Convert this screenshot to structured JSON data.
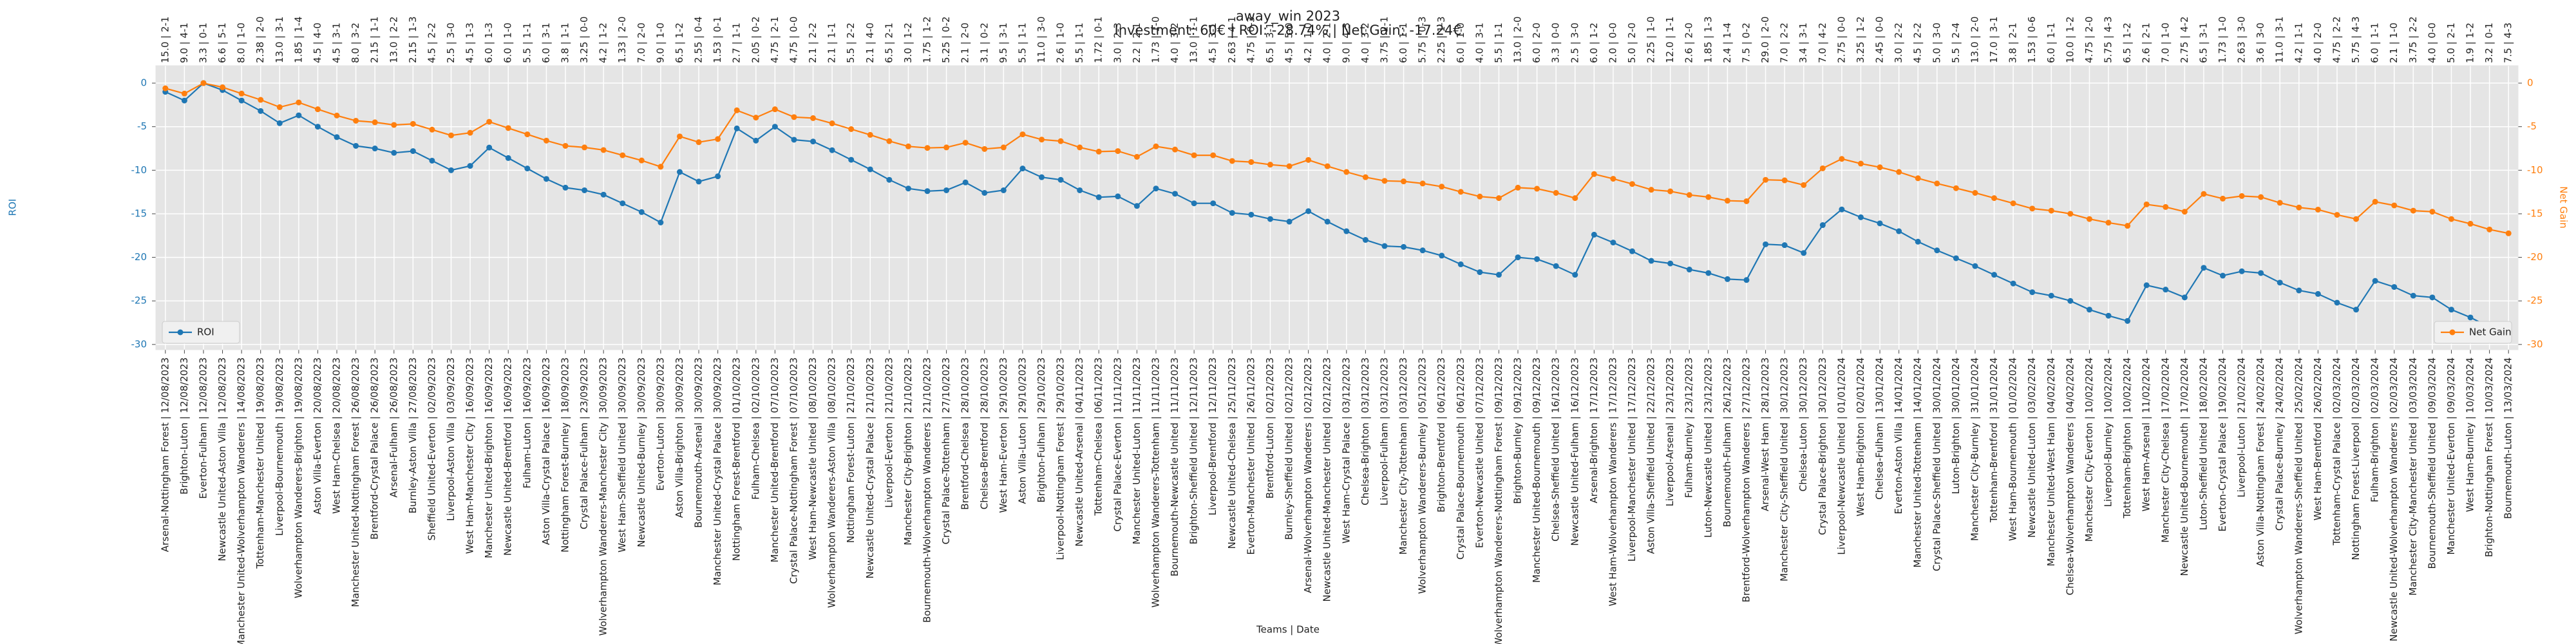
{
  "chart_data": {
    "type": "line",
    "title": "away_win 2023",
    "subtitle": "Investment: 60€ | ROI: -28.74% | Net Gain: -17.24€",
    "xlabel": "Teams | Date",
    "ylabel": "ROI",
    "y2label": "Net Gain",
    "ylim": [
      -30.6,
      2.0
    ],
    "yticks": [
      0,
      -5,
      -10,
      -15,
      -20,
      -25,
      -30
    ],
    "y2lim": [
      -30.6,
      2.0
    ],
    "y2ticks": [
      0,
      -5,
      -10,
      -15,
      -20,
      -25,
      -30
    ],
    "grid": true,
    "categories": [
      "Arsenal-Nottingham Forest | 12/08/2023",
      "Brighton-Luton | 12/08/2023",
      "Everton-Fulham | 12/08/2023",
      "Newcastle United-Aston Villa | 12/08/2023",
      "Manchester United-Wolverhampton Wanderers | 14/08/2023",
      "Tottenham-Manchester United | 19/08/2023",
      "Liverpool-Bournemouth | 19/08/2023",
      "Wolverhampton Wanderers-Brighton | 19/08/2023",
      "Aston Villa-Everton | 20/08/2023",
      "West Ham-Chelsea | 20/08/2023",
      "Manchester United-Nottingham Forest | 26/08/2023",
      "Brentford-Crystal Palace | 26/08/2023",
      "Arsenal-Fulham | 26/08/2023",
      "Burnley-Aston Villa | 27/08/2023",
      "Sheffield United-Everton | 02/09/2023",
      "Liverpool-Aston Villa | 03/09/2023",
      "West Ham-Manchester City | 16/09/2023",
      "Manchester United-Brighton | 16/09/2023",
      "Newcastle United-Brentford | 16/09/2023",
      "Fulham-Luton | 16/09/2023",
      "Aston Villa-Crystal Palace | 16/09/2023",
      "Nottingham Forest-Burnley | 18/09/2023",
      "Crystal Palace-Fulham | 23/09/2023",
      "Wolverhampton Wanderers-Manchester City | 30/09/2023",
      "West Ham-Sheffield United | 30/09/2023",
      "Newcastle United-Burnley | 30/09/2023",
      "Everton-Luton | 30/09/2023",
      "Aston Villa-Brighton | 30/09/2023",
      "Bournemouth-Arsenal | 30/09/2023",
      "Manchester United-Crystal Palace | 30/09/2023",
      "Nottingham Forest-Brentford | 01/10/2023",
      "Fulham-Chelsea | 02/10/2023",
      "Manchester United-Brentford | 07/10/2023",
      "Crystal Palace-Nottingham Forest | 07/10/2023",
      "West Ham-Newcastle United | 08/10/2023",
      "Wolverhampton Wanderers-Aston Villa | 08/10/2023",
      "Nottingham Forest-Luton | 21/10/2023",
      "Newcastle United-Crystal Palace | 21/10/2023",
      "Liverpool-Everton | 21/10/2023",
      "Manchester City-Brighton | 21/10/2023",
      "Bournemouth-Wolverhampton Wanderers | 21/10/2023",
      "Crystal Palace-Tottenham | 27/10/2023",
      "Brentford-Chelsea | 28/10/2023",
      "Chelsea-Brentford | 28/10/2023",
      "West Ham-Everton | 29/10/2023",
      "Aston Villa-Luton | 29/10/2023",
      "Brighton-Fulham | 29/10/2023",
      "Liverpool-Nottingham Forest | 29/10/2023",
      "Newcastle United-Arsenal | 04/11/2023",
      "Tottenham-Chelsea | 06/11/2023",
      "Crystal Palace-Everton | 11/11/2023",
      "Manchester United-Luton | 11/11/2023",
      "Wolverhampton Wanderers-Tottenham | 11/11/2023",
      "Bournemouth-Newcastle United | 11/11/2023",
      "Brighton-Sheffield United | 12/11/2023",
      "Liverpool-Brentford | 12/11/2023",
      "Newcastle United-Chelsea | 25/11/2023",
      "Everton-Manchester United | 26/11/2023",
      "Brentford-Luton | 02/12/2023",
      "Burnley-Sheffield United | 02/12/2023",
      "Arsenal-Wolverhampton Wanderers | 02/12/2023",
      "Newcastle United-Manchester United | 02/12/2023",
      "West Ham-Crystal Palace | 03/12/2023",
      "Chelsea-Brighton | 03/12/2023",
      "Liverpool-Fulham | 03/12/2023",
      "Manchester City-Tottenham | 03/12/2023",
      "Wolverhampton Wanderers-Burnley | 05/12/2023",
      "Brighton-Brentford | 06/12/2023",
      "Crystal Palace-Bournemouth | 06/12/2023",
      "Everton-Newcastle United | 07/12/2023",
      "Wolverhampton Wanderers-Nottingham Forest | 09/12/2023",
      "Brighton-Burnley | 09/12/2023",
      "Manchester United-Bournemouth | 09/12/2023",
      "Chelsea-Sheffield United | 16/12/2023",
      "Newcastle United-Fulham | 16/12/2023",
      "Arsenal-Brighton | 17/12/2023",
      "West Ham-Wolverhampton Wanderers | 17/12/2023",
      "Liverpool-Manchester United | 17/12/2023",
      "Aston Villa-Sheffield United | 22/12/2023",
      "Liverpool-Arsenal | 23/12/2023",
      "Fulham-Burnley | 23/12/2023",
      "Luton-Newcastle United | 23/12/2023",
      "Bournemouth-Fulham | 26/12/2023",
      "Brentford-Wolverhampton Wanderers | 27/12/2023",
      "Arsenal-West Ham | 28/12/2023",
      "Manchester City-Sheffield United | 30/12/2023",
      "Chelsea-Luton | 30/12/2023",
      "Crystal Palace-Brighton | 30/12/2023",
      "Liverpool-Newcastle United | 01/01/2024",
      "West Ham-Brighton | 02/01/2024",
      "Chelsea-Fulham | 13/01/2024",
      "Everton-Aston Villa | 14/01/2024",
      "Manchester United-Tottenham | 14/01/2024",
      "Crystal Palace-Sheffield United | 30/01/2024",
      "Luton-Brighton | 30/01/2024",
      "Manchester City-Burnley | 31/01/2024",
      "Tottenham-Brentford | 31/01/2024",
      "West Ham-Bournemouth | 01/02/2024",
      "Newcastle United-Luton | 03/02/2024",
      "Manchester United-West Ham | 04/02/2024",
      "Chelsea-Wolverhampton Wanderers | 04/02/2024",
      "Manchester City-Everton | 10/02/2024",
      "Liverpool-Burnley | 10/02/2024",
      "Tottenham-Brighton | 10/02/2024",
      "West Ham-Arsenal | 11/02/2024",
      "Manchester City-Chelsea | 17/02/2024",
      "Newcastle United-Bournemouth | 17/02/2024",
      "Luton-Sheffield United | 18/02/2024",
      "Everton-Crystal Palace | 19/02/2024",
      "Liverpool-Luton | 21/02/2024",
      "Aston Villa-Nottingham Forest | 24/02/2024",
      "Crystal Palace-Burnley | 24/02/2024",
      "Wolverhampton Wanderers-Sheffield United | 25/02/2024",
      "West Ham-Brentford | 26/02/2024",
      "Tottenham-Crystal Palace | 02/03/2024",
      "Nottingham Forest-Liverpool | 02/03/2024",
      "Fulham-Brighton | 02/03/2024",
      "Newcastle United-Wolverhampton Wanderers | 02/03/2024",
      "Manchester City-Manchester United | 03/03/2024",
      "Bournemouth-Sheffield United | 09/03/2024",
      "Manchester United-Everton | 09/03/2024",
      "West Ham-Burnley | 10/03/2024",
      "Brighton-Nottingham Forest | 10/03/2024",
      "Bournemouth-Luton | 13/03/2024"
    ],
    "top_labels": [
      "15.0 | 2-1",
      "9.0 | 4-1",
      "3.3 | 0-1",
      "6.6 | 5-1",
      "8.0 | 1-0",
      "2.38 | 2-0",
      "13.0 | 3-1",
      "1.85 | 1-4",
      "4.5 | 4-0",
      "4.5 | 3-1",
      "8.0 | 3-2",
      "2.15 | 1-1",
      "13.0 | 2-2",
      "2.15 | 1-3",
      "4.5 | 2-2",
      "2.5 | 3-0",
      "4.5 | 1-3",
      "6.0 | 1-3",
      "6.0 | 1-0",
      "5.5 | 1-1",
      "6.0 | 3-1",
      "3.8 | 1-1",
      "3.25 | 0-0",
      "4.2 | 1-2",
      "1.33 | 2-0",
      "7.0 | 2-0",
      "9.0 | 1-0",
      "6.5 | 1-2",
      "2.55 | 0-4",
      "1.53 | 0-1",
      "2.7 | 1-1",
      "2.05 | 0-2",
      "4.75 | 2-1",
      "4.75 | 0-0",
      "2.1 | 2-2",
      "2.1 | 1-1",
      "5.5 | 2-2",
      "2.1 | 4-0",
      "6.5 | 2-1",
      "3.0 | 1-2",
      "1.75 | 1-2",
      "5.25 | 0-2",
      "2.1 | 2-0",
      "3.1 | 0-2",
      "9.5 | 3-1",
      "5.5 | 1-1",
      "11.0 | 3-0",
      "2.6 | 1-0",
      "5.5 | 1-1",
      "1.72 | 0-1",
      "3.0 | 2-3",
      "2.2 | 2-1",
      "1.73 | 1-0",
      "4.0 | 3-2",
      "13.0 | 1-1",
      "4.5 | 3-1",
      "2.63 | 4-1",
      "4.75 | 0-3",
      "6.5 | 3-1",
      "4.5 | 5-0",
      "4.2 | 1-0",
      "4.0 | 2-1",
      "9.0 | 4-3",
      "4.0 | 3-2",
      "3.75 | 2-1",
      "6.0 | 1-1",
      "5.75 | 0-3",
      "2.25 | 1-3",
      "6.0 | 1-0",
      "4.0 | 3-1",
      "5.5 | 1-1",
      "13.0 | 2-0",
      "6.0 | 2-0",
      "3.3 | 0-0",
      "2.5 | 3-0",
      "6.0 | 1-2",
      "2.0 | 0-0",
      "5.0 | 2-0",
      "2.25 | 1-0",
      "12.0 | 1-1",
      "2.6 | 2-0",
      "1.85 | 1-3",
      "2.4 | 1-4",
      "7.5 | 0-2",
      "29.0 | 2-0",
      "7.0 | 2-2",
      "3.4 | 3-1",
      "7.0 | 4-2",
      "2.75 | 0-0",
      "3.25 | 1-2",
      "2.45 | 0-0",
      "3.0 | 2-2",
      "4.5 | 2-2",
      "5.0 | 3-0",
      "5.5 | 2-4",
      "13.0 | 2-0",
      "17.0 | 3-1",
      "3.8 | 2-1",
      "1.53 | 0-6",
      "6.0 | 1-1",
      "10.0 | 1-2",
      "4.75 | 2-0",
      "5.75 | 4-3",
      "6.5 | 1-2",
      "2.6 | 2-1",
      "7.0 | 1-0",
      "2.75 | 4-2",
      "6.5 | 3-1",
      "1.73 | 1-0",
      "2.63 | 3-0",
      "3.6 | 3-0",
      "11.0 | 3-1",
      "4.2 | 1-1",
      "4.0 | 2-0",
      "4.75 | 2-2",
      "5.75 | 4-3",
      "6.0 | 1-1",
      "2.1 | 1-0",
      "3.75 | 2-2",
      "4.0 | 0-0",
      "5.0 | 2-1",
      "1.9 | 1-2",
      "3.2 | 0-1",
      "7.5 | 4-3"
    ],
    "series": [
      {
        "name": "ROI",
        "color": "#1f77b4",
        "axis": "y",
        "legend": "lower left",
        "values": [
          -1.0,
          -2.0,
          0.0,
          -0.8,
          -2.0,
          -3.2,
          -4.6,
          -3.7,
          -5.0,
          -6.2,
          -7.2,
          -7.5,
          -8.0,
          -7.8,
          -8.9,
          -10.0,
          -9.5,
          -7.4,
          -8.6,
          -9.8,
          -11.0,
          -12.0,
          -12.3,
          -12.8,
          -13.8,
          -14.8,
          -16.0,
          -10.2,
          -11.3,
          -10.7,
          -5.2,
          -6.6,
          -5.0,
          -6.5,
          -6.7,
          -7.7,
          -8.8,
          -9.9,
          -11.1,
          -12.1,
          -12.4,
          -12.3,
          -11.4,
          -12.6,
          -12.3,
          -9.8,
          -10.8,
          -11.1,
          -12.3,
          -13.1,
          -13.0,
          -14.1,
          -12.1,
          -12.7,
          -13.8,
          -13.8,
          -14.9,
          -15.1,
          -15.6,
          -15.9,
          -14.7,
          -15.9,
          -17.0,
          -18.0,
          -18.7,
          -18.8,
          -19.2,
          -19.8,
          -20.8,
          -21.7,
          -22.0,
          -20.0,
          -20.2,
          -21.0,
          -22.0,
          -17.4,
          -18.3,
          -19.3,
          -20.4,
          -20.7,
          -21.4,
          -21.8,
          -22.5,
          -22.6,
          -18.5,
          -18.6,
          -19.5,
          -16.3,
          -14.5,
          -15.4,
          -16.1,
          -17.0,
          -18.2,
          -19.2,
          -20.1,
          -21.0,
          -22.0,
          -23.0,
          -24.0,
          -24.4,
          -25.0,
          -26.0,
          -26.7,
          -27.3,
          -23.2,
          -23.7,
          -24.6,
          -21.2,
          -22.1,
          -21.6,
          -21.8,
          -22.9,
          -23.8,
          -24.2,
          -25.2,
          -26.0,
          -22.7,
          -23.4,
          -24.4,
          -24.6,
          -26.0,
          -26.9,
          -28.0,
          -28.74
        ]
      },
      {
        "name": "Net Gain",
        "color": "#ff7f0e",
        "axis": "y2",
        "legend": "lower right",
        "values": [
          -0.6,
          -1.2,
          0,
          -0.48,
          -1.2,
          -1.92,
          -2.76,
          -2.22,
          -3.0,
          -3.72,
          -4.32,
          -4.5,
          -4.8,
          -4.68,
          -5.34,
          -6.0,
          -5.7,
          -4.44,
          -5.16,
          -5.88,
          -6.6,
          -7.2,
          -7.38,
          -7.68,
          -8.28,
          -8.88,
          -9.6,
          -6.12,
          -6.78,
          -6.42,
          -3.12,
          -3.96,
          -3.0,
          -3.9,
          -4.02,
          -4.62,
          -5.28,
          -5.94,
          -6.66,
          -7.26,
          -7.44,
          -7.38,
          -6.84,
          -7.56,
          -7.38,
          -5.88,
          -6.48,
          -6.66,
          -7.38,
          -7.86,
          -7.8,
          -8.46,
          -7.26,
          -7.62,
          -8.28,
          -8.28,
          -8.94,
          -9.06,
          -9.36,
          -9.54,
          -8.82,
          -9.54,
          -10.2,
          -10.8,
          -11.22,
          -11.28,
          -11.52,
          -11.88,
          -12.48,
          -13.02,
          -13.2,
          -12.0,
          -12.12,
          -12.6,
          -13.2,
          -10.44,
          -10.98,
          -11.58,
          -12.24,
          -12.42,
          -12.84,
          -13.08,
          -13.5,
          -13.56,
          -11.1,
          -11.16,
          -11.7,
          -9.78,
          -8.7,
          -9.24,
          -9.66,
          -10.2,
          -10.92,
          -11.52,
          -12.06,
          -12.6,
          -13.2,
          -13.8,
          -14.4,
          -14.64,
          -15.0,
          -15.6,
          -16.02,
          -16.38,
          -13.92,
          -14.22,
          -14.76,
          -12.72,
          -13.26,
          -12.96,
          -13.08,
          -13.74,
          -14.28,
          -14.52,
          -15.12,
          -15.6,
          -13.62,
          -14.04,
          -14.64,
          -14.76,
          -15.6,
          -16.14,
          -16.8,
          -17.24
        ]
      }
    ]
  }
}
